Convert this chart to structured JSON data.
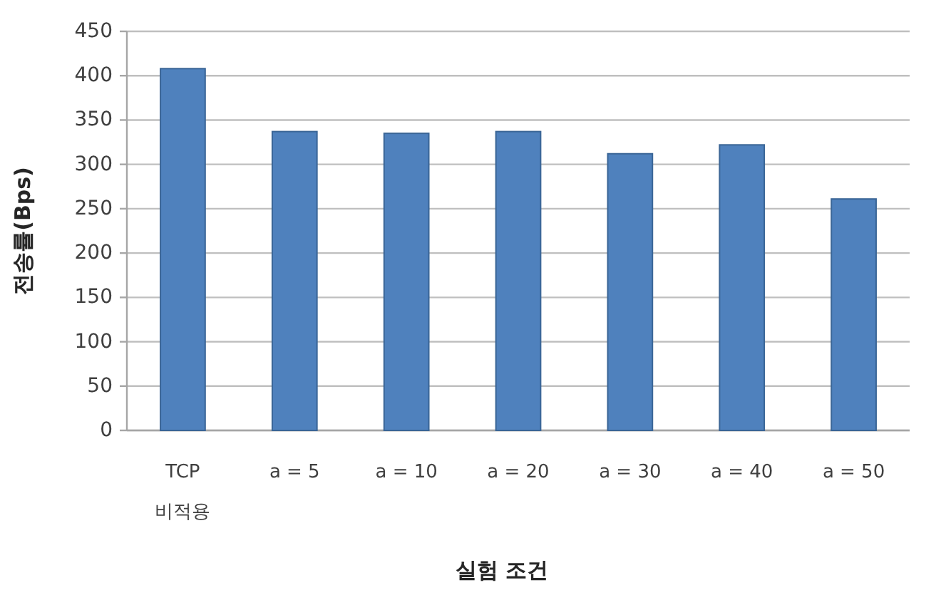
{
  "chart_data": {
    "type": "bar",
    "xlabel": "실험 조건",
    "ylabel": "전송률(Bps)",
    "categories": [
      "TCP\n비적용",
      "a = 5",
      "a = 10",
      "a = 20",
      "a = 30",
      "a = 40",
      "a = 50"
    ],
    "values": [
      408,
      337,
      335,
      337,
      312,
      322,
      261
    ],
    "color": "#4f81bd",
    "ylim": [
      0,
      450
    ],
    "yticks": [
      0,
      50,
      100,
      150,
      200,
      250,
      300,
      350,
      400,
      450
    ],
    "grid": "y"
  }
}
